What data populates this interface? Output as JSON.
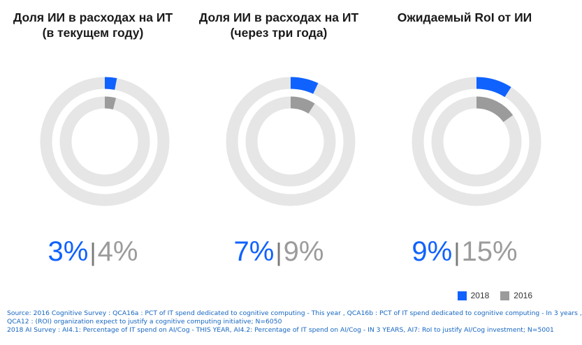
{
  "chart_data": {
    "type": "donut",
    "series_colors": {
      "2018": "#0f62fe",
      "2016": "#9b9b9b",
      "track": "#e6e6e6"
    },
    "charts": [
      {
        "title": "Доля ИИ в расходах на ИТ\n(в текущем году)",
        "value_2018": 3,
        "value_2016": 4,
        "label_2018": "3%",
        "label_2016": "4%"
      },
      {
        "title": "Доля ИИ в расходах на ИТ\n(через три года)",
        "value_2018": 7,
        "value_2016": 9,
        "label_2018": "7%",
        "label_2016": "9%"
      },
      {
        "title": "Ожидаемый RoI от ИИ",
        "value_2018": 9,
        "value_2016": 15,
        "label_2018": "9%",
        "label_2016": "15%"
      }
    ],
    "legend": [
      {
        "label": "2018",
        "color": "#0f62fe"
      },
      {
        "label": "2016",
        "color": "#9b9b9b"
      }
    ],
    "legend_position": "bottom-right"
  },
  "source_lines": [
    "Source: 2016 Cognitive Survey : QCA16a : PCT of IT spend dedicated to cognitive computing - This year , QCA16b : PCT of IT spend dedicated to cognitive computing - In 3 years ,",
    "QCA12 : (ROI) organization expect to justify a cognitive computing initiative; N=6050",
    "2018 AI Survey : AI4.1: Percentage of IT spend on AI/Cog - THIS YEAR, AI4.2: Percentage of IT spend on AI/Cog - IN 3 YEARS,  AI7: RoI to justify AI/Cog investment; N=5001"
  ]
}
